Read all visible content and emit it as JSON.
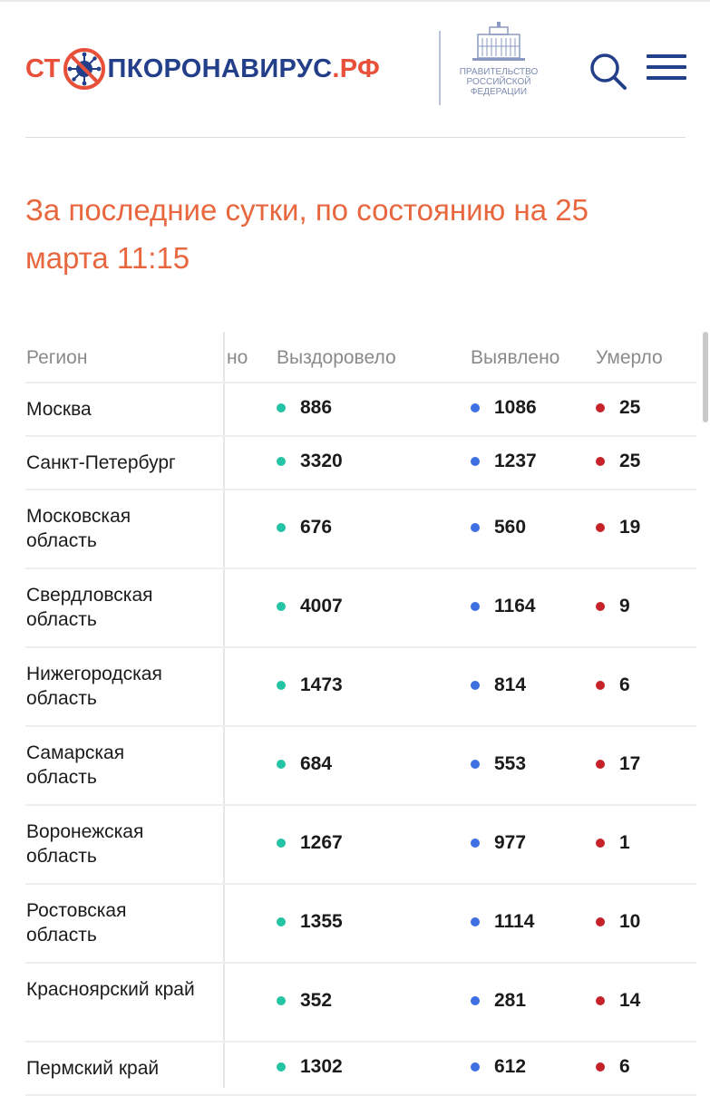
{
  "header": {
    "logo": {
      "part1": "СТ",
      "part2": "ПКОРОНАВИРУС",
      "part3": ".РФ"
    },
    "gov_lines": [
      "ПРАВИТЕЛЬСТВО",
      "РОССИЙСКОЙ",
      "ФЕДЕРАЦИИ"
    ],
    "icons": {
      "search": "search-icon",
      "menu": "hamburger-menu-icon",
      "virus": "virus-icon"
    }
  },
  "title": "За последние сутки, по состоянию на 25 марта 11:15",
  "table": {
    "headers": {
      "region": "Регион",
      "hidden": "но",
      "recovered": "Выздоровело",
      "detected": "Выявлено",
      "died": "Умерло"
    },
    "rows": [
      {
        "region": "Москва",
        "recovered": "886",
        "detected": "1086",
        "died": "25"
      },
      {
        "region": "Санкт-Петербург",
        "recovered": "3320",
        "detected": "1237",
        "died": "25"
      },
      {
        "region": "Московская область",
        "recovered": "676",
        "detected": "560",
        "died": "19"
      },
      {
        "region": "Свердловская область",
        "recovered": "4007",
        "detected": "1164",
        "died": "9"
      },
      {
        "region": "Нижегородская область",
        "recovered": "1473",
        "detected": "814",
        "died": "6"
      },
      {
        "region": "Самарская область",
        "recovered": "684",
        "detected": "553",
        "died": "17"
      },
      {
        "region": "Воронежская область",
        "recovered": "1267",
        "detected": "977",
        "died": "1"
      },
      {
        "region": "Ростовская область",
        "recovered": "1355",
        "detected": "1114",
        "died": "10"
      },
      {
        "region": "Красноярский край",
        "recovered": "352",
        "detected": "281",
        "died": "14"
      },
      {
        "region": "Пермский край",
        "recovered": "1302",
        "detected": "612",
        "died": "6"
      }
    ]
  },
  "colors": {
    "brand_red": "#e8503a",
    "brand_blue": "#233f8a",
    "title": "#e8673f",
    "recovered_dot": "#23c4a4",
    "detected_dot": "#3e6fe3",
    "died_dot": "#c5222a"
  }
}
